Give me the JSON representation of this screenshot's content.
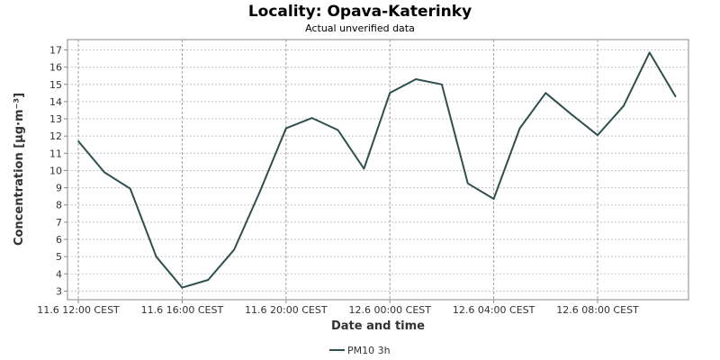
{
  "chart_data": {
    "type": "line",
    "title": "Locality: Opava-Katerinky",
    "subtitle": "Actual unverified data",
    "xlabel": "Date and time",
    "ylabel": "Concentration [µg·m⁻³]",
    "ylim": [
      2.5,
      17.6
    ],
    "yticks": [
      3,
      4,
      5,
      6,
      7,
      8,
      9,
      10,
      11,
      12,
      13,
      14,
      15,
      16,
      17
    ],
    "xlim": [
      "11.6 11:35 CEST",
      "12.6 11:30 CEST"
    ],
    "xticks": [
      {
        "label": "11.6 12:00 CEST",
        "t": "11.6 12:00"
      },
      {
        "label": "11.6 16:00 CEST",
        "t": "11.6 16:00"
      },
      {
        "label": "11.6 20:00 CEST",
        "t": "11.6 20:00"
      },
      {
        "label": "12.6 00:00 CEST",
        "t": "12.6 00:00"
      },
      {
        "label": "12.6 04:00 CEST",
        "t": "12.6 04:00"
      },
      {
        "label": "12.6 08:00 CEST",
        "t": "12.6 08:00"
      }
    ],
    "grid": true,
    "legend_position": "bottom",
    "series": [
      {
        "name": "PM10 3h",
        "color": "#2f4f4f",
        "points": [
          {
            "x": "11.6 12:00",
            "y": 11.7
          },
          {
            "x": "11.6 13:00",
            "y": 9.9
          },
          {
            "x": "11.6 14:00",
            "y": 8.95
          },
          {
            "x": "11.6 15:00",
            "y": 5.0
          },
          {
            "x": "11.6 16:00",
            "y": 3.2
          },
          {
            "x": "11.6 17:00",
            "y": 3.65
          },
          {
            "x": "11.6 18:00",
            "y": 5.4
          },
          {
            "x": "11.6 19:00",
            "y": 8.8
          },
          {
            "x": "11.6 20:00",
            "y": 12.45
          },
          {
            "x": "11.6 21:00",
            "y": 13.05
          },
          {
            "x": "11.6 22:00",
            "y": 12.35
          },
          {
            "x": "11.6 23:00",
            "y": 10.1
          },
          {
            "x": "12.6 00:00",
            "y": 14.5
          },
          {
            "x": "12.6 01:00",
            "y": 15.3
          },
          {
            "x": "12.6 02:00",
            "y": 15.0
          },
          {
            "x": "12.6 03:00",
            "y": 9.25
          },
          {
            "x": "12.6 04:00",
            "y": 8.35
          },
          {
            "x": "12.6 05:00",
            "y": 12.45
          },
          {
            "x": "12.6 06:00",
            "y": 14.5
          },
          {
            "x": "12.6 07:00",
            "y": 13.25
          },
          {
            "x": "12.6 08:00",
            "y": 12.05
          },
          {
            "x": "12.6 09:00",
            "y": 13.75
          },
          {
            "x": "12.6 10:00",
            "y": 16.85
          },
          {
            "x": "12.6 11:00",
            "y": 14.3
          }
        ]
      }
    ]
  }
}
